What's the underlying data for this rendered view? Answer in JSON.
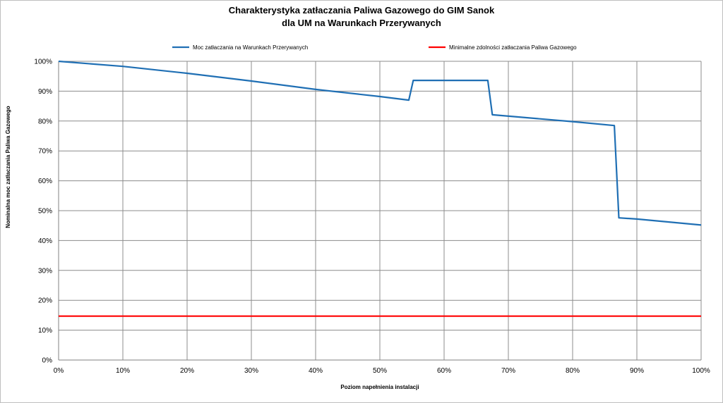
{
  "chart_data": {
    "type": "line",
    "title_line1": "Charakterystyka zatłaczania Paliwa Gazowego do GIM Sanok",
    "title_line2": "dla UM na Warunkach Przerywanych",
    "xlabel": "Poziom napełnienia instalacji",
    "ylabel": "Nominalna moc zatłaczania Paliwa Gazowego",
    "xlim": [
      0,
      100
    ],
    "ylim": [
      0,
      100
    ],
    "x_ticks": [
      "0%",
      "10%",
      "20%",
      "30%",
      "40%",
      "50%",
      "60%",
      "70%",
      "80%",
      "90%",
      "100%"
    ],
    "y_ticks": [
      "0%",
      "10%",
      "20%",
      "30%",
      "40%",
      "50%",
      "60%",
      "70%",
      "80%",
      "90%",
      "100%"
    ],
    "grid": true,
    "legend_position": "top",
    "series": [
      {
        "name": "Moc zatłaczania na Warunkach Przerywanych",
        "color": "#1f6fb4",
        "x": [
          0,
          10,
          20,
          30,
          40,
          50,
          54.5,
          55.2,
          66.8,
          67.5,
          80,
          86.5,
          87.2,
          90,
          100
        ],
        "y": [
          100,
          98.3,
          96,
          93.4,
          90.6,
          88.2,
          87.0,
          93.6,
          93.6,
          82.1,
          79.8,
          78.5,
          47.6,
          47.2,
          45.2
        ]
      },
      {
        "name": "Minimalne zdolności zatłaczania Paliwa Gazowego",
        "color": "#ff0000",
        "x": [
          0,
          100
        ],
        "y": [
          14.7,
          14.7
        ]
      }
    ]
  }
}
